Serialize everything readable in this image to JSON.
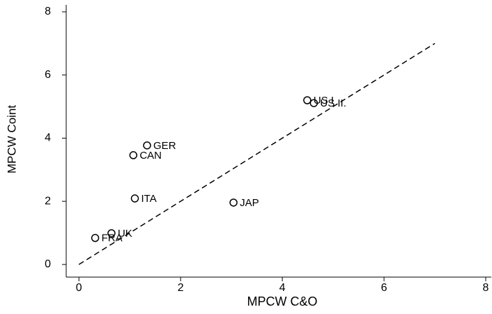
{
  "chart_data": {
    "type": "scatter",
    "x_label": "MPCW C&O",
    "y_label": "MPCW Coint",
    "points": [
      {
        "label": "US I",
        "x": 4.49,
        "y": 5.2
      },
      {
        "label": "US II.",
        "x": 4.62,
        "y": 5.11
      },
      {
        "label": "GER",
        "x": 1.34,
        "y": 3.77
      },
      {
        "label": "CAN",
        "x": 1.07,
        "y": 3.46
      },
      {
        "label": "ITA",
        "x": 1.1,
        "y": 2.09
      },
      {
        "label": "JAP",
        "x": 3.04,
        "y": 1.96
      },
      {
        "label": "UK",
        "x": 0.64,
        "y": 0.99
      },
      {
        "label": "FRA",
        "x": 0.32,
        "y": 0.84
      }
    ],
    "diagonal": {
      "x": [
        0,
        7
      ],
      "y": [
        0,
        7
      ]
    },
    "xlim": [
      -0.25,
      8
    ],
    "ylim": [
      -0.4,
      8
    ],
    "xticks": [
      0,
      2,
      4,
      6,
      8
    ],
    "yticks": [
      0,
      2,
      4,
      6,
      8
    ],
    "color": "#000000"
  }
}
